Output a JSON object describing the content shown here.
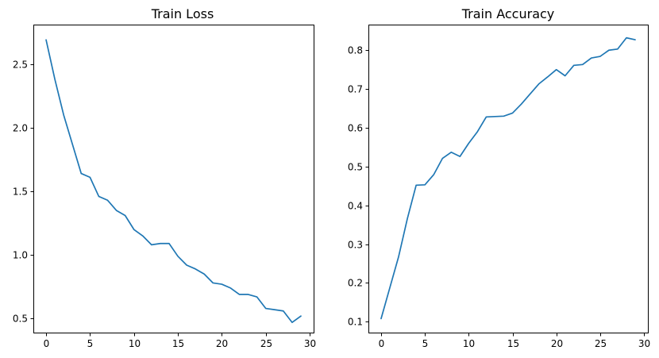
{
  "colors": {
    "series": "#1f77b4"
  },
  "chart_data": [
    {
      "type": "line",
      "title": "Train Loss",
      "xlabel": "",
      "ylabel": "",
      "xlim": [
        -1.45,
        30.45
      ],
      "ylim": [
        0.39,
        2.81
      ],
      "xticks": [
        0,
        5,
        10,
        15,
        20,
        25,
        30
      ],
      "yticks": [
        0.5,
        1.0,
        1.5,
        2.0,
        2.5
      ],
      "xtick_labels": [
        "0",
        "5",
        "10",
        "15",
        "20",
        "25",
        "30"
      ],
      "ytick_labels": [
        "0.5",
        "1.0",
        "1.5",
        "2.0",
        "2.5"
      ],
      "grid": false,
      "series": [
        {
          "x": [
            0,
            1,
            2,
            3,
            4,
            5,
            6,
            7,
            8,
            9,
            10,
            11,
            12,
            13,
            14,
            15,
            16,
            17,
            18,
            19,
            20,
            21,
            22,
            23,
            24,
            25,
            26,
            27,
            28,
            29
          ],
          "y": [
            2.69,
            2.38,
            2.1,
            1.87,
            1.64,
            1.61,
            1.46,
            1.43,
            1.35,
            1.31,
            1.2,
            1.15,
            1.08,
            1.09,
            1.09,
            0.99,
            0.92,
            0.89,
            0.85,
            0.78,
            0.77,
            0.74,
            0.69,
            0.69,
            0.67,
            0.58,
            0.57,
            0.56,
            0.47,
            0.52
          ]
        }
      ]
    },
    {
      "type": "line",
      "title": "Train Accuracy",
      "xlabel": "",
      "ylabel": "",
      "xlim": [
        -1.45,
        30.45
      ],
      "ylim": [
        0.072,
        0.866
      ],
      "xticks": [
        0,
        5,
        10,
        15,
        20,
        25,
        30
      ],
      "yticks": [
        0.1,
        0.2,
        0.3,
        0.4,
        0.5,
        0.6,
        0.7,
        0.8
      ],
      "xtick_labels": [
        "0",
        "5",
        "10",
        "15",
        "20",
        "25",
        "30"
      ],
      "ytick_labels": [
        "0.1",
        "0.2",
        "0.3",
        "0.4",
        "0.5",
        "0.6",
        "0.7",
        "0.8"
      ],
      "grid": false,
      "series": [
        {
          "x": [
            0,
            1,
            2,
            3,
            4,
            5,
            6,
            7,
            8,
            9,
            10,
            11,
            12,
            13,
            14,
            15,
            16,
            17,
            18,
            19,
            20,
            21,
            22,
            23,
            24,
            25,
            26,
            27,
            28,
            29
          ],
          "y": [
            0.108,
            0.188,
            0.268,
            0.366,
            0.452,
            0.453,
            0.479,
            0.521,
            0.537,
            0.526,
            0.56,
            0.59,
            0.628,
            0.629,
            0.63,
            0.638,
            0.661,
            0.687,
            0.713,
            0.731,
            0.75,
            0.734,
            0.761,
            0.763,
            0.78,
            0.784,
            0.8,
            0.803,
            0.832,
            0.827
          ]
        }
      ]
    }
  ]
}
